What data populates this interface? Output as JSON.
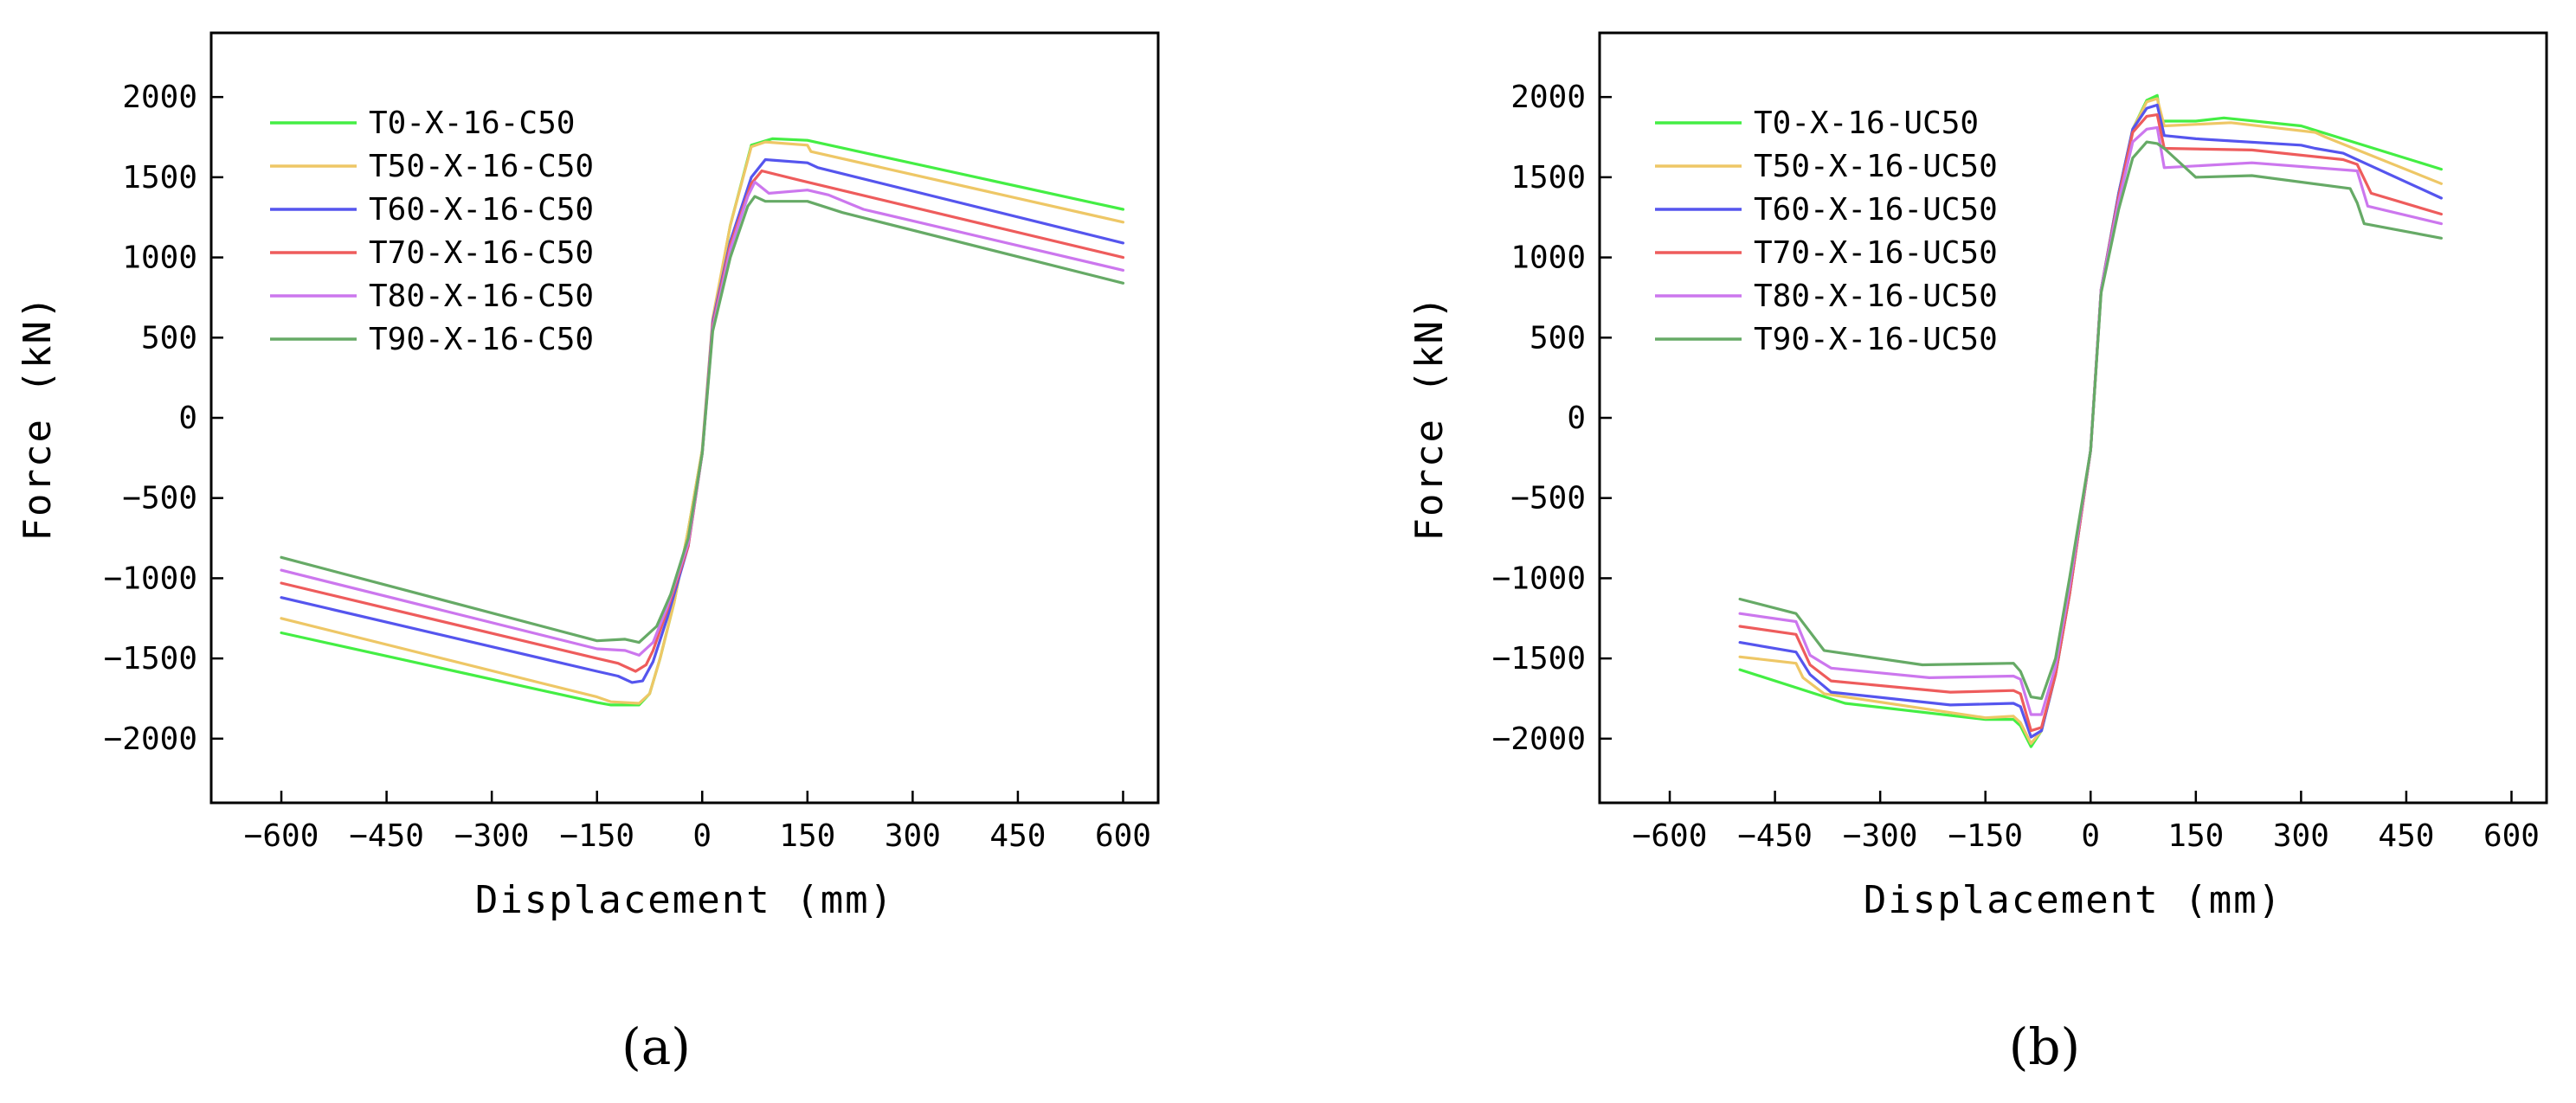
{
  "figure": {
    "panel_labels": [
      "(a)",
      "(b)"
    ]
  },
  "colors": {
    "T0": "#44ee44",
    "T50": "#eec766",
    "T60": "#5555ee",
    "T70": "#ee5c5c",
    "T80": "#cc77ee",
    "T90": "#66aa66"
  },
  "chart_data": [
    {
      "type": "line",
      "panel": "(a)",
      "title": "",
      "xlabel": "Displacement (mm)",
      "ylabel": "Force (kN)",
      "xlim": [
        -700,
        650
      ],
      "ylim": [
        -2400,
        2400
      ],
      "xticks": [
        -600,
        -450,
        -300,
        -150,
        0,
        150,
        300,
        450,
        600
      ],
      "xtick_labels": [
        "−600",
        "−450",
        "−300",
        "−150",
        "0",
        "150",
        "300",
        "450",
        "600"
      ],
      "yticks": [
        2000,
        1500,
        1000,
        500,
        0,
        -500,
        -1000,
        -1500,
        -2000
      ],
      "ytick_labels": [
        "2000",
        "1500",
        "1000",
        "500",
        "0",
        "−500",
        "−1000",
        "−1500",
        "−2000"
      ],
      "legend_position": "top-left",
      "series": [
        {
          "name": "T0-X-16-C50",
          "color_key": "T0",
          "x": [
            -600,
            -150,
            -130,
            -90,
            -75,
            -60,
            -40,
            -20,
            0,
            15,
            40,
            70,
            100,
            150,
            600
          ],
          "y": [
            -1340,
            -1775,
            -1790,
            -1790,
            -1720,
            -1500,
            -1150,
            -700,
            -200,
            600,
            1200,
            1700,
            1740,
            1730,
            1300
          ]
        },
        {
          "name": "T50-X-16-C50",
          "color_key": "T50",
          "x": [
            -600,
            -150,
            -130,
            -90,
            -75,
            -60,
            -40,
            -20,
            0,
            15,
            40,
            70,
            90,
            150,
            155,
            600
          ],
          "y": [
            -1250,
            -1740,
            -1770,
            -1780,
            -1720,
            -1500,
            -1150,
            -700,
            -200,
            620,
            1200,
            1690,
            1720,
            1700,
            1660,
            1220
          ]
        },
        {
          "name": "T60-X-16-C50",
          "color_key": "T60",
          "x": [
            -600,
            -150,
            -120,
            -100,
            -85,
            -70,
            -50,
            -20,
            0,
            15,
            40,
            70,
            90,
            150,
            165,
            600
          ],
          "y": [
            -1120,
            -1580,
            -1610,
            -1650,
            -1640,
            -1520,
            -1250,
            -800,
            -220,
            600,
            1100,
            1500,
            1610,
            1590,
            1560,
            1090
          ]
        },
        {
          "name": "T70-X-16-C50",
          "color_key": "T70",
          "x": [
            -600,
            -150,
            -120,
            -95,
            -80,
            -70,
            -50,
            -20,
            0,
            15,
            40,
            70,
            85,
            140,
            600
          ],
          "y": [
            -1030,
            -1500,
            -1530,
            -1580,
            -1540,
            -1450,
            -1200,
            -800,
            -220,
            580,
            1080,
            1460,
            1540,
            1480,
            1000
          ]
        },
        {
          "name": "T80-X-16-C50",
          "color_key": "T80",
          "x": [
            -600,
            -150,
            -110,
            -90,
            -80,
            -70,
            -50,
            -20,
            0,
            15,
            40,
            65,
            75,
            95,
            150,
            180,
            230,
            600
          ],
          "y": [
            -950,
            -1440,
            -1450,
            -1480,
            -1440,
            -1400,
            -1180,
            -780,
            -220,
            560,
            1050,
            1380,
            1470,
            1400,
            1420,
            1390,
            1300,
            920
          ]
        },
        {
          "name": "T90-X-16-C50",
          "color_key": "T90",
          "x": [
            -600,
            -150,
            -110,
            -90,
            -80,
            -65,
            -45,
            -20,
            0,
            15,
            40,
            65,
            75,
            90,
            150,
            200,
            600
          ],
          "y": [
            -870,
            -1390,
            -1380,
            -1400,
            -1360,
            -1300,
            -1100,
            -750,
            -220,
            540,
            1000,
            1320,
            1380,
            1350,
            1350,
            1280,
            840
          ]
        }
      ]
    },
    {
      "type": "line",
      "panel": "(b)",
      "title": "",
      "xlabel": "Displacement (mm)",
      "ylabel": "Force (kN)",
      "xlim": [
        -700,
        650
      ],
      "ylim": [
        -2400,
        2400
      ],
      "xticks": [
        -600,
        -450,
        -300,
        -150,
        0,
        150,
        300,
        450,
        600
      ],
      "xtick_labels": [
        "−600",
        "−450",
        "−300",
        "−150",
        "0",
        "150",
        "300",
        "450",
        "600"
      ],
      "yticks": [
        2000,
        1500,
        1000,
        500,
        0,
        -500,
        -1000,
        -1500,
        -2000
      ],
      "ytick_labels": [
        "2000",
        "1500",
        "1000",
        "500",
        "0",
        "−500",
        "−1000",
        "−1500",
        "−2000"
      ],
      "legend_position": "top-left",
      "series": [
        {
          "name": "T0-X-16-UC50",
          "color_key": "T0",
          "x": [
            -500,
            -350,
            -150,
            -110,
            -100,
            -85,
            -70,
            -50,
            -30,
            0,
            15,
            40,
            60,
            80,
            95,
            100,
            150,
            190,
            300,
            500
          ],
          "y": [
            -1570,
            -1780,
            -1880,
            -1880,
            -1920,
            -2050,
            -1950,
            -1600,
            -1100,
            -200,
            800,
            1400,
            1800,
            1980,
            2010,
            1850,
            1850,
            1870,
            1820,
            1550
          ]
        },
        {
          "name": "T50-X-16-UC50",
          "color_key": "T50",
          "x": [
            -500,
            -420,
            -410,
            -380,
            -150,
            -110,
            -100,
            -85,
            -70,
            -50,
            -30,
            0,
            15,
            40,
            60,
            80,
            95,
            105,
            200,
            320,
            335,
            500
          ],
          "y": [
            -1490,
            -1530,
            -1620,
            -1720,
            -1870,
            -1860,
            -1900,
            -2030,
            -1950,
            -1600,
            -1100,
            -200,
            800,
            1400,
            1800,
            1970,
            1990,
            1820,
            1840,
            1780,
            1750,
            1460
          ]
        },
        {
          "name": "T60-X-16-UC50",
          "color_key": "T60",
          "x": [
            -500,
            -420,
            -400,
            -370,
            -200,
            -110,
            -100,
            -85,
            -70,
            -50,
            -30,
            0,
            15,
            40,
            60,
            80,
            95,
            105,
            150,
            300,
            320,
            360,
            500
          ],
          "y": [
            -1400,
            -1460,
            -1600,
            -1710,
            -1790,
            -1780,
            -1800,
            -1990,
            -1950,
            -1600,
            -1100,
            -200,
            800,
            1400,
            1800,
            1930,
            1950,
            1760,
            1740,
            1700,
            1680,
            1650,
            1370
          ]
        },
        {
          "name": "T70-X-16-UC50",
          "color_key": "T70",
          "x": [
            -500,
            -420,
            -400,
            -370,
            -200,
            -110,
            -100,
            -85,
            -70,
            -50,
            -30,
            0,
            15,
            40,
            60,
            80,
            95,
            105,
            230,
            360,
            380,
            400,
            500
          ],
          "y": [
            -1300,
            -1350,
            -1540,
            -1640,
            -1710,
            -1700,
            -1720,
            -1950,
            -1930,
            -1600,
            -1100,
            -200,
            800,
            1380,
            1780,
            1880,
            1890,
            1680,
            1670,
            1610,
            1580,
            1400,
            1270
          ]
        },
        {
          "name": "T80-X-16-UC50",
          "color_key": "T80",
          "x": [
            -500,
            -420,
            -400,
            -370,
            -230,
            -110,
            -100,
            -85,
            -70,
            -50,
            -30,
            0,
            15,
            40,
            60,
            80,
            95,
            105,
            230,
            380,
            395,
            500
          ],
          "y": [
            -1220,
            -1270,
            -1480,
            -1560,
            -1620,
            -1610,
            -1630,
            -1850,
            -1850,
            -1550,
            -1050,
            -200,
            800,
            1350,
            1720,
            1800,
            1810,
            1560,
            1590,
            1540,
            1320,
            1210
          ]
        },
        {
          "name": "T90-X-16-UC50",
          "color_key": "T90",
          "x": [
            -500,
            -420,
            -380,
            -240,
            -110,
            -100,
            -85,
            -70,
            -50,
            -30,
            0,
            15,
            40,
            60,
            80,
            95,
            105,
            150,
            230,
            370,
            380,
            390,
            500
          ],
          "y": [
            -1130,
            -1220,
            -1450,
            -1540,
            -1530,
            -1580,
            -1740,
            -1750,
            -1500,
            -1000,
            -200,
            780,
            1300,
            1620,
            1720,
            1710,
            1680,
            1500,
            1510,
            1430,
            1340,
            1210,
            1120
          ]
        }
      ]
    }
  ]
}
